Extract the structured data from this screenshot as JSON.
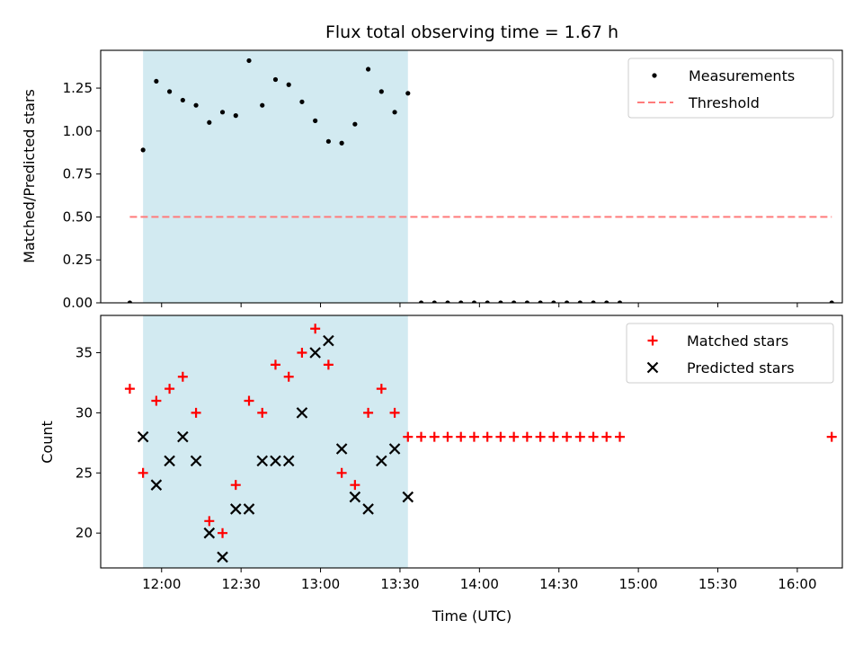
{
  "chart_data": [
    {
      "type": "scatter",
      "title": "Flux total observing time = 1.67 h",
      "xlabel": "",
      "ylabel": "Matched/Predicted stars",
      "xlim": [
        "11:37",
        "16:17"
      ],
      "ylim": [
        0,
        1.47
      ],
      "yticks": [
        "0.00",
        "0.25",
        "0.50",
        "0.75",
        "1.00",
        "1.25"
      ],
      "shaded_span": {
        "start": "11:53",
        "end": "13:33",
        "color": "#add8e6"
      },
      "legend": {
        "position": "upper right",
        "entries": [
          "Measurements",
          "Threshold"
        ]
      },
      "series": [
        {
          "name": "Measurements",
          "marker": "dot",
          "color": "#000000",
          "x": [
            "11:48",
            "11:53",
            "11:58",
            "12:03",
            "12:08",
            "12:13",
            "12:18",
            "12:23",
            "12:28",
            "12:33",
            "12:38",
            "12:43",
            "12:48",
            "12:53",
            "12:58",
            "13:03",
            "13:08",
            "13:13",
            "13:18",
            "13:23",
            "13:28",
            "13:33",
            "13:38",
            "13:43",
            "13:48",
            "13:53",
            "13:58",
            "14:03",
            "14:08",
            "14:13",
            "14:18",
            "14:23",
            "14:28",
            "14:33",
            "14:38",
            "14:43",
            "14:48",
            "14:53",
            "16:13"
          ],
          "y": [
            0,
            0.89,
            1.29,
            1.23,
            1.18,
            1.15,
            1.05,
            1.11,
            1.09,
            1.41,
            1.15,
            1.3,
            1.27,
            1.17,
            1.06,
            0.94,
            0.93,
            1.04,
            1.36,
            1.23,
            1.11,
            1.22,
            0,
            0,
            0,
            0,
            0,
            0,
            0,
            0,
            0,
            0,
            0,
            0,
            0,
            0,
            0,
            0,
            0
          ]
        },
        {
          "name": "Threshold",
          "style": "dashed",
          "color": "#ff7b7b",
          "x": [
            "11:48",
            "16:13"
          ],
          "y": [
            0.5,
            0.5
          ]
        }
      ]
    },
    {
      "type": "scatter",
      "title": "",
      "xlabel": "Time (UTC)",
      "ylabel": "Count",
      "xlim": [
        "11:37",
        "16:17"
      ],
      "ylim": [
        17.1,
        38.1
      ],
      "yticks": [
        "20",
        "25",
        "30",
        "35"
      ],
      "xticks": [
        "12:00",
        "12:30",
        "13:00",
        "13:30",
        "14:00",
        "14:30",
        "15:00",
        "15:30",
        "16:00"
      ],
      "shaded_span": {
        "start": "11:53",
        "end": "13:33",
        "color": "#add8e6"
      },
      "legend": {
        "position": "upper right",
        "entries": [
          "Matched stars",
          "Predicted stars"
        ]
      },
      "series": [
        {
          "name": "Matched stars",
          "marker": "plus",
          "color": "#ff0000",
          "x": [
            "11:48",
            "11:53",
            "11:58",
            "12:03",
            "12:08",
            "12:13",
            "12:18",
            "12:23",
            "12:28",
            "12:33",
            "12:38",
            "12:43",
            "12:48",
            "12:53",
            "12:58",
            "13:03",
            "13:08",
            "13:13",
            "13:18",
            "13:23",
            "13:28",
            "13:33",
            "13:38",
            "13:43",
            "13:48",
            "13:53",
            "13:58",
            "14:03",
            "14:08",
            "14:13",
            "14:18",
            "14:23",
            "14:28",
            "14:33",
            "14:38",
            "14:43",
            "14:48",
            "14:53",
            "16:13"
          ],
          "y": [
            32,
            25,
            31,
            32,
            33,
            30,
            21,
            20,
            24,
            31,
            30,
            34,
            33,
            35,
            37,
            34,
            25,
            24,
            30,
            32,
            30,
            28,
            28,
            28,
            28,
            28,
            28,
            28,
            28,
            28,
            28,
            28,
            28,
            28,
            28,
            28,
            28,
            28,
            28
          ]
        },
        {
          "name": "Predicted stars",
          "marker": "x",
          "color": "#000000",
          "x": [
            "11:53",
            "11:58",
            "12:03",
            "12:08",
            "12:13",
            "12:18",
            "12:23",
            "12:28",
            "12:33",
            "12:38",
            "12:43",
            "12:48",
            "12:53",
            "12:58",
            "13:03",
            "13:08",
            "13:13",
            "13:18",
            "13:23",
            "13:28",
            "13:33"
          ],
          "y": [
            28,
            24,
            26,
            28,
            26,
            20,
            18,
            22,
            22,
            26,
            26,
            26,
            30,
            35,
            36,
            27,
            23,
            22,
            26,
            27,
            23
          ]
        }
      ]
    }
  ]
}
